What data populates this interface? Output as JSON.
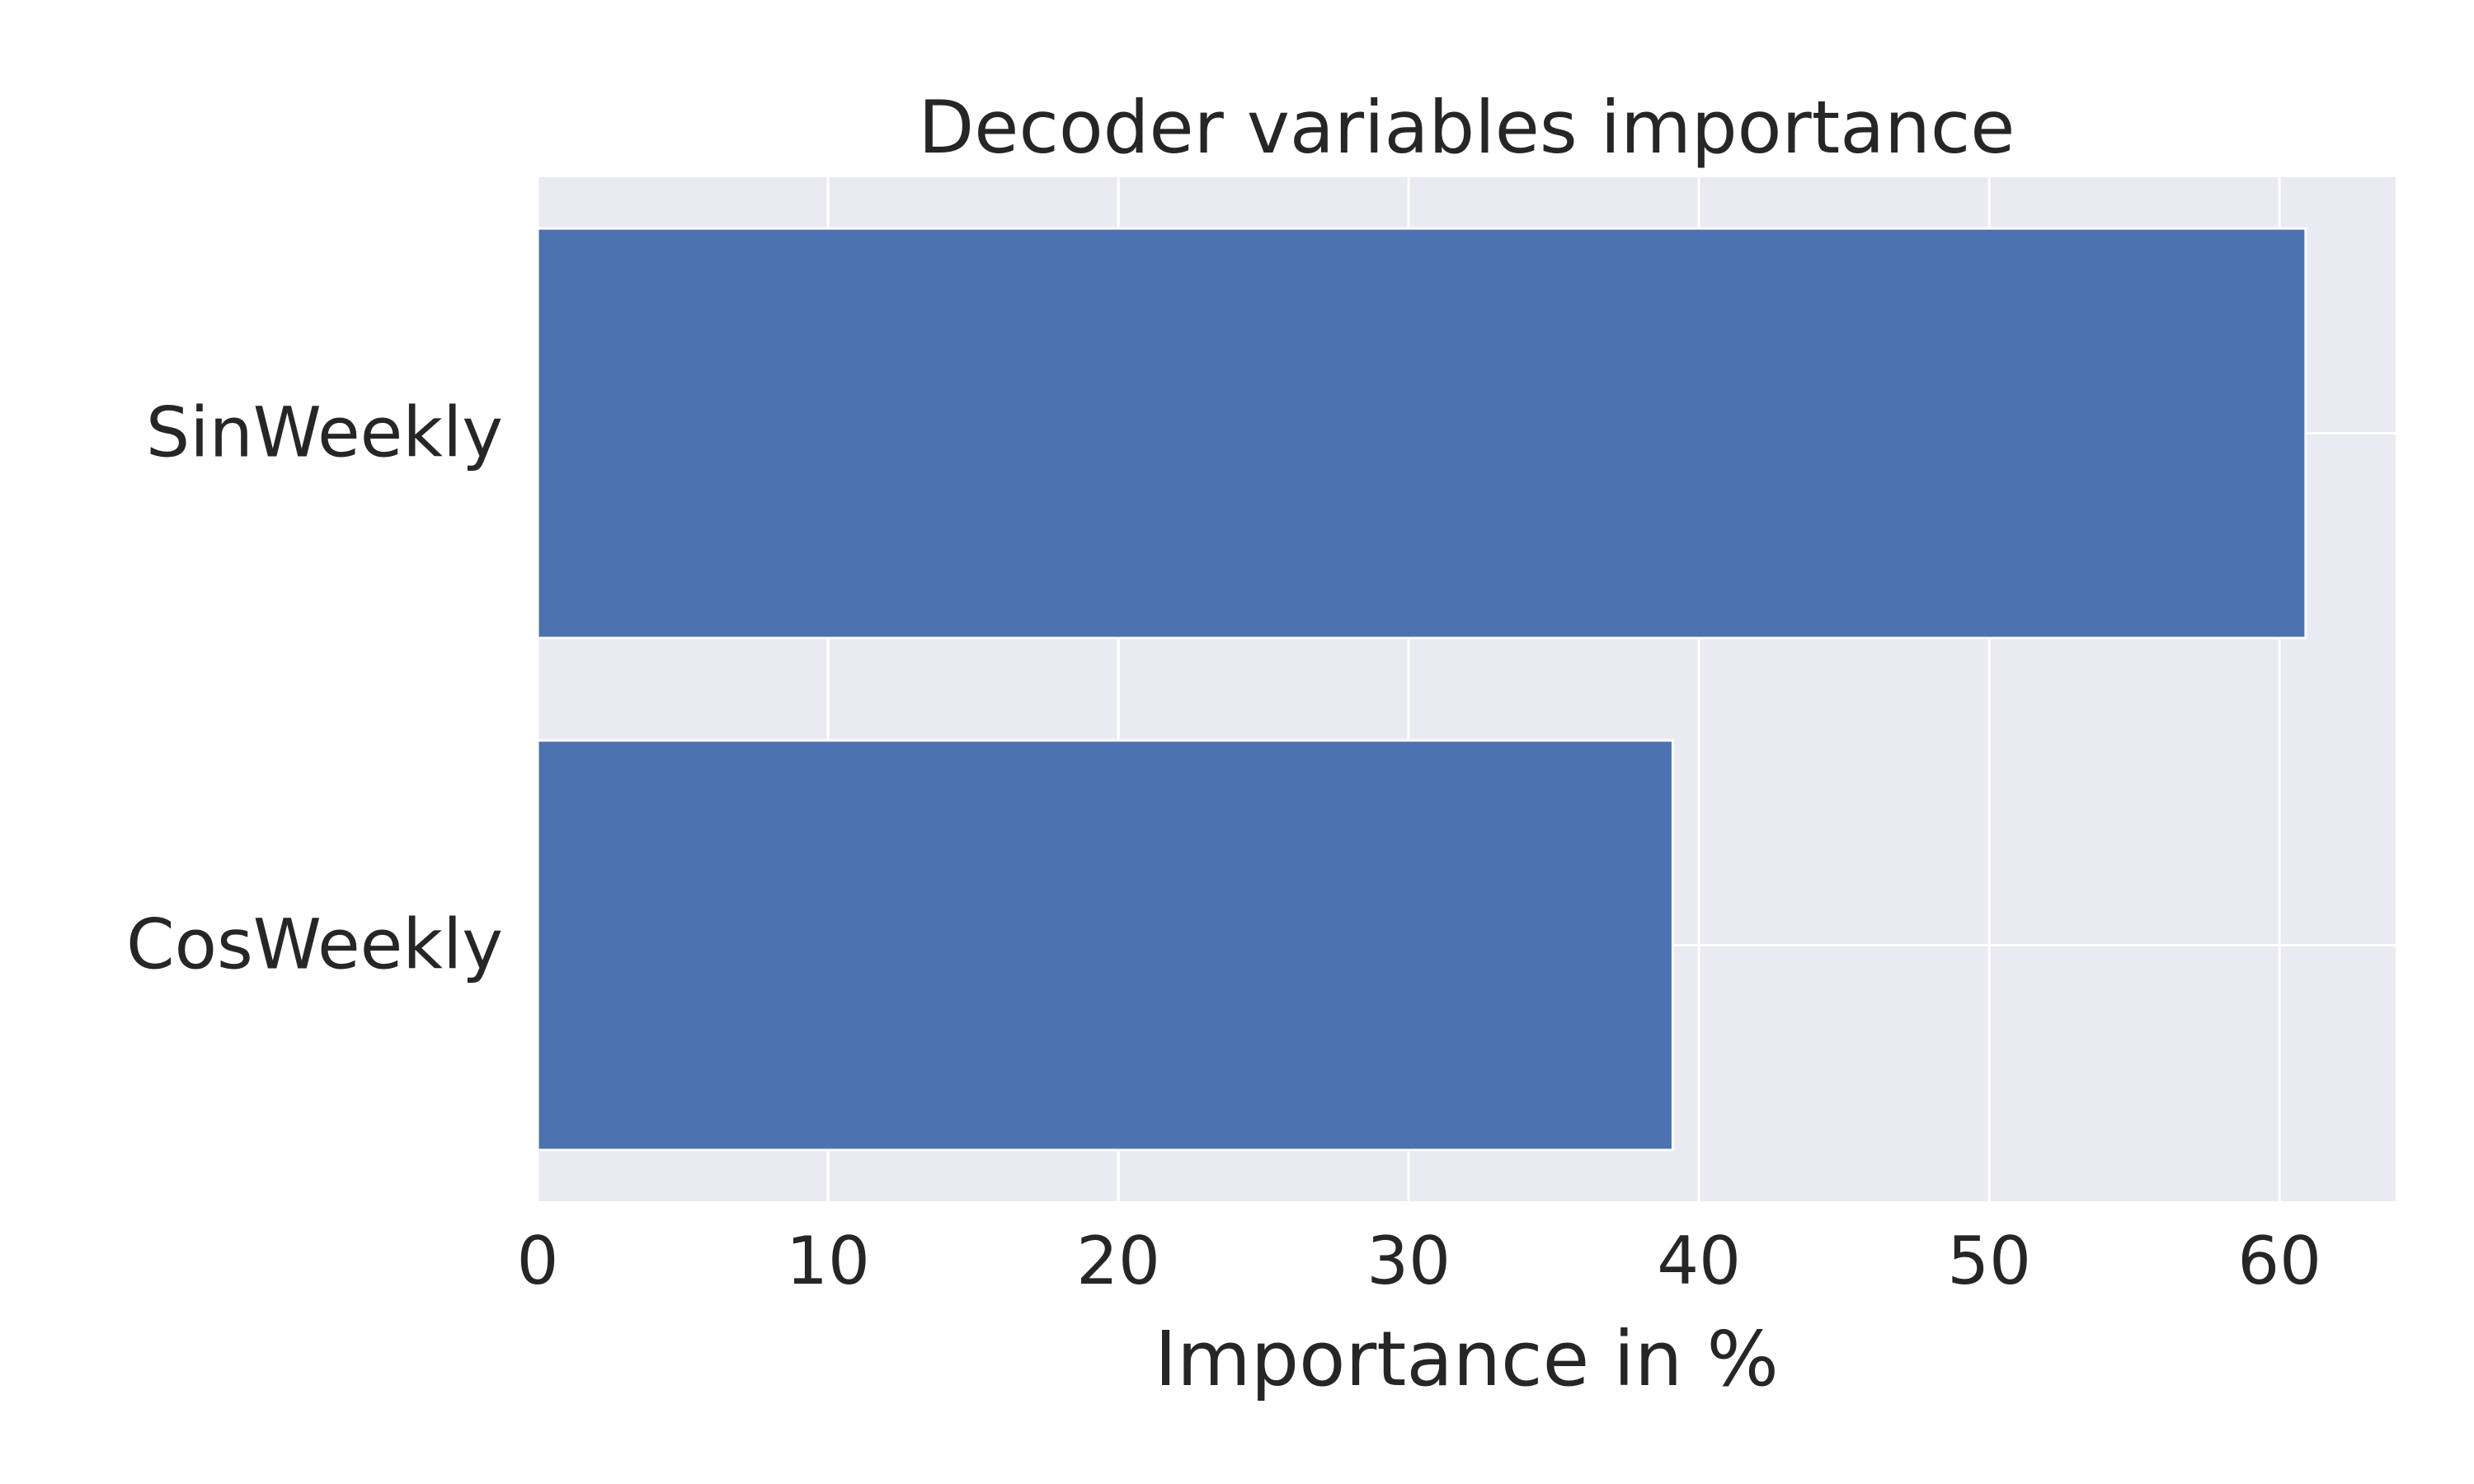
{
  "chart_data": {
    "type": "bar",
    "orientation": "horizontal",
    "title": "Decoder variables importance",
    "xlabel": "Importance in %",
    "ylabel": "",
    "categories": [
      "SinWeekly",
      "CosWeekly"
    ],
    "values": [
      60.9,
      39.1
    ],
    "xlim": [
      0,
      64
    ],
    "xticks": [
      0,
      10,
      20,
      30,
      40,
      50,
      60
    ],
    "grid": true,
    "colors": {
      "bar": "#4c72b0",
      "plot_background": "#eaeaf2",
      "grid": "#ffffff",
      "text": "#262626"
    }
  }
}
